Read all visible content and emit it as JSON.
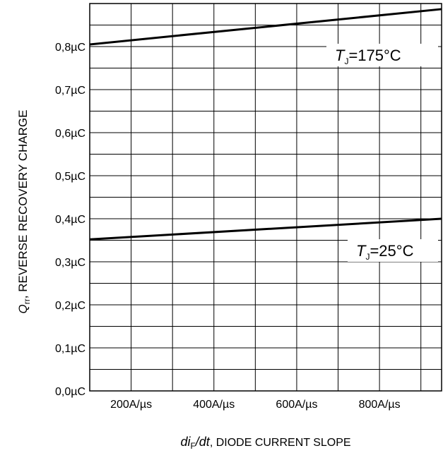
{
  "chart_data": {
    "type": "line",
    "title": "",
    "xlabel": {
      "symbol_main": "di",
      "symbol_sub": "F",
      "symbol_tail": "/dt",
      "text": ", DIODE CURRENT SLOPE"
    },
    "ylabel": {
      "symbol_main": "Q",
      "symbol_sub": "rr",
      "text": ", REVERSE RECOVERY CHARGE"
    },
    "x_unit": "A/μs",
    "y_unit": "μC",
    "xlim": [
      100,
      950
    ],
    "ylim": [
      0.0,
      0.9
    ],
    "x_ticks": [
      {
        "value": 200,
        "label": "200A/µs"
      },
      {
        "value": 400,
        "label": "400A/µs"
      },
      {
        "value": 600,
        "label": "600A/µs"
      },
      {
        "value": 800,
        "label": "800A/µs"
      }
    ],
    "y_ticks": [
      {
        "value": 0.0,
        "label": "0,0µC"
      },
      {
        "value": 0.1,
        "label": "0,1µC"
      },
      {
        "value": 0.2,
        "label": "0,2µC"
      },
      {
        "value": 0.3,
        "label": "0,3µC"
      },
      {
        "value": 0.4,
        "label": "0,4µC"
      },
      {
        "value": 0.5,
        "label": "0,5µC"
      },
      {
        "value": 0.6,
        "label": "0,6µC"
      },
      {
        "value": 0.7,
        "label": "0,7µC"
      },
      {
        "value": 0.8,
        "label": "0,8µC"
      }
    ],
    "grid": true,
    "series": [
      {
        "label_main": "T",
        "label_sub": "J",
        "label_tail": "=175°C",
        "x": [
          100,
          950
        ],
        "y": [
          0.805,
          0.887
        ]
      },
      {
        "label_main": "T",
        "label_sub": "J",
        "label_tail": "=25°C",
        "x": [
          100,
          950
        ],
        "y": [
          0.352,
          0.4
        ]
      }
    ],
    "colors": {
      "line": "#000000",
      "grid": "#000000",
      "background": "#ffffff"
    }
  }
}
